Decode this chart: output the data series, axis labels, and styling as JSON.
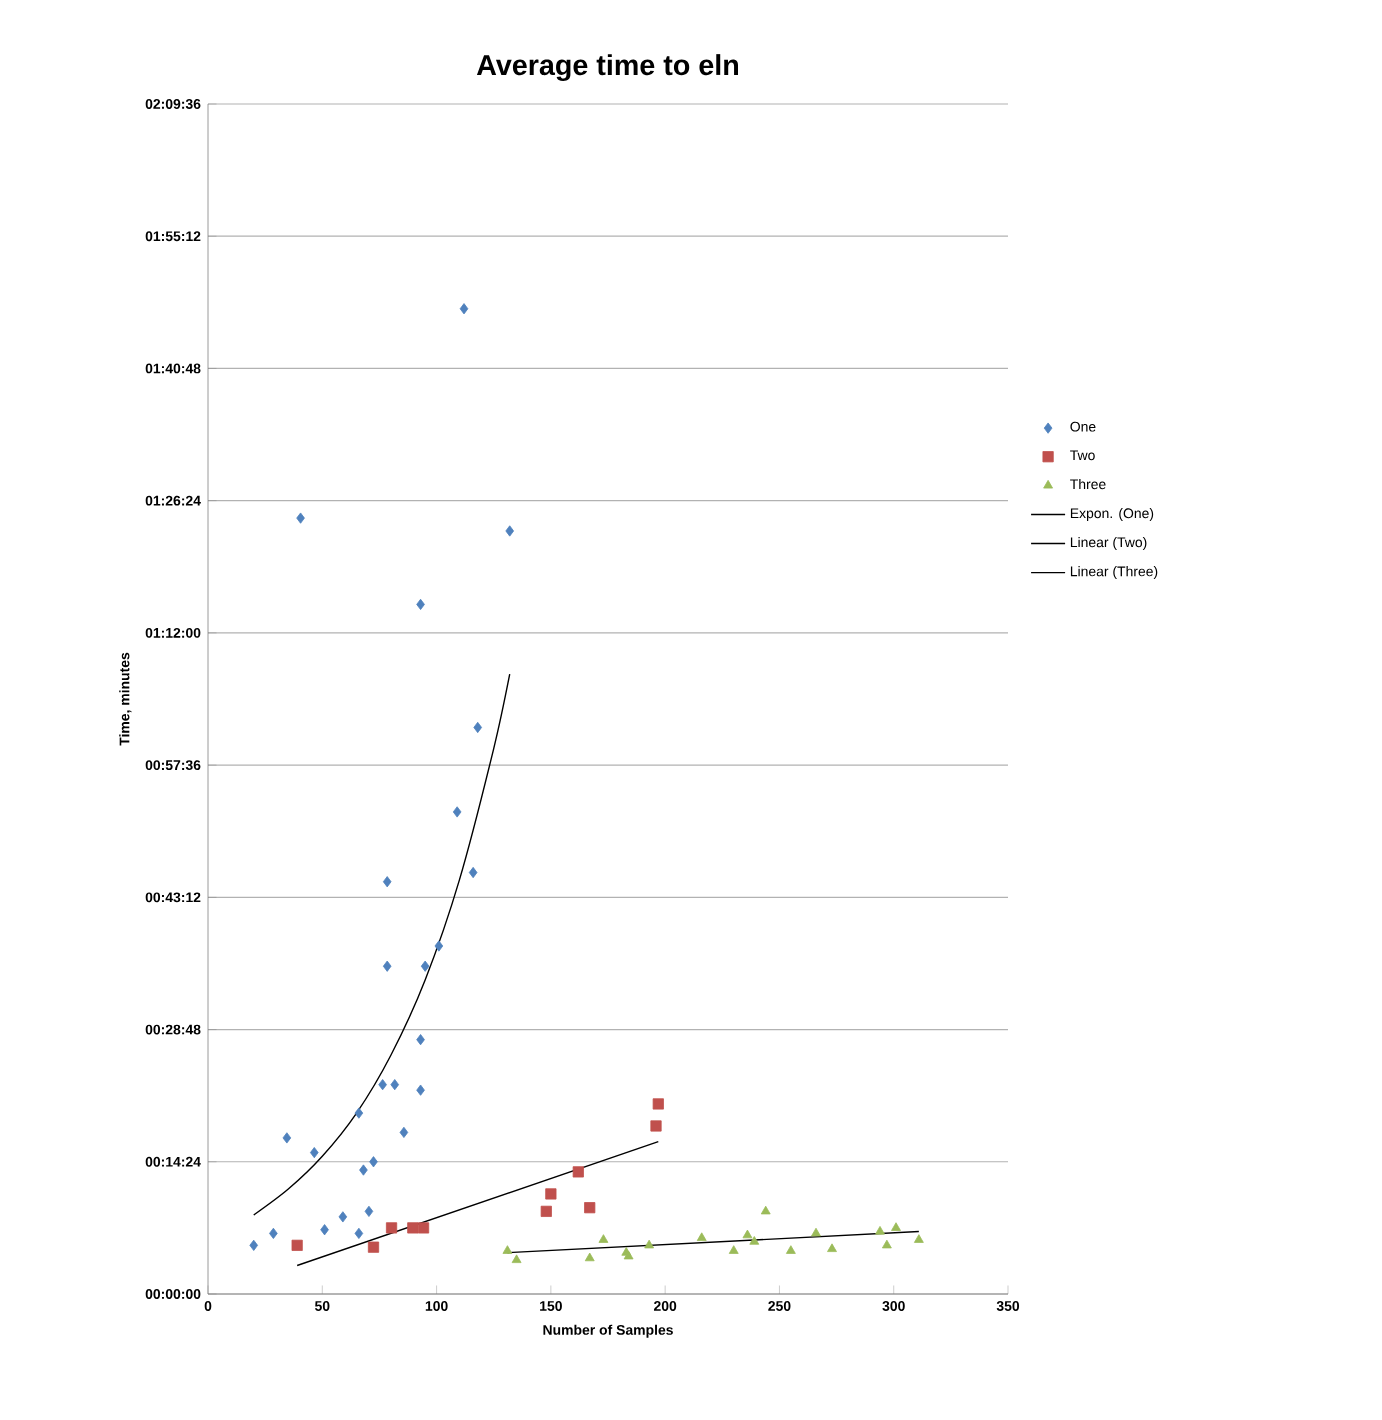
{
  "chart_data": {
    "type": "scatter",
    "title": "Average time to eln",
    "xlabel": "Number of Samples",
    "ylabel": "Time, minutes",
    "xlim": [
      0,
      350
    ],
    "xticks": [
      0,
      50,
      100,
      150,
      200,
      250,
      300,
      350
    ],
    "ylim": [
      0,
      129.6
    ],
    "yticks": [
      {
        "value": 0,
        "label": "00:00:00"
      },
      {
        "value": 14.4,
        "label": "00:14:24"
      },
      {
        "value": 28.8,
        "label": "00:28:48"
      },
      {
        "value": 43.2,
        "label": "00:43:12"
      },
      {
        "value": 57.6,
        "label": "00:57:36"
      },
      {
        "value": 72,
        "label": "01:12:00"
      },
      {
        "value": 86.4,
        "label": "01:26:24"
      },
      {
        "value": 100.8,
        "label": "01:40:48"
      },
      {
        "value": 115.2,
        "label": "01:55:12"
      },
      {
        "value": 129.6,
        "label": "02:09:36"
      }
    ],
    "grid": "y",
    "legend": "right",
    "series": [
      {
        "name": "One",
        "type": "scatter",
        "marker": "diamond",
        "color": "#4f81bd",
        "x": [
          20,
          28.6,
          34.5,
          46.5,
          51,
          59,
          66,
          66,
          68,
          70.4,
          72.4,
          76.4,
          81.7,
          78.4,
          78.4,
          85.7,
          93,
          93,
          95,
          101,
          116,
          109,
          118,
          93,
          40.5,
          132,
          112
        ],
        "values": [
          5.3,
          6.6,
          17.0,
          15.4,
          7.0,
          8.4,
          6.6,
          19.7,
          13.5,
          9.0,
          14.4,
          22.8,
          22.8,
          35.7,
          44.9,
          17.6,
          22.2,
          27.7,
          35.7,
          37.9,
          45.9,
          52.5,
          61.7,
          75.1,
          84.5,
          83.1,
          107.3
        ]
      },
      {
        "name": "Two",
        "type": "scatter",
        "marker": "square",
        "color": "#c0504d",
        "x": [
          39,
          72.4,
          80.3,
          89.6,
          94.3,
          148,
          150,
          162,
          167,
          196,
          197
        ],
        "values": [
          5.3,
          5.1,
          7.2,
          7.2,
          7.2,
          9.0,
          10.9,
          13.3,
          9.4,
          18.3,
          20.7
        ]
      },
      {
        "name": "Three",
        "type": "scatter",
        "marker": "triangle",
        "color": "#9bbb59",
        "x": [
          131,
          135,
          167,
          173,
          183,
          184,
          193,
          216,
          230,
          236,
          239,
          244,
          255,
          266,
          273,
          294,
          297,
          301,
          311
        ],
        "values": [
          4.7,
          3.7,
          3.9,
          5.9,
          4.5,
          4.1,
          5.3,
          6.1,
          4.7,
          6.4,
          5.7,
          9.0,
          4.7,
          6.6,
          4.9,
          6.8,
          5.3,
          7.2,
          5.9
        ]
      },
      {
        "name": "Expon. (One)",
        "type": "line",
        "marker": "none",
        "line_style": "solid",
        "color": "#000000",
        "x": [
          20,
          35,
          50,
          65,
          80,
          95,
          110,
          125,
          132
        ],
        "values": [
          8.6,
          11.4,
          15.0,
          19.7,
          26.0,
          34.2,
          45.1,
          59.4,
          67.5
        ]
      },
      {
        "name": "Linear (Two)",
        "type": "line",
        "marker": "none",
        "line_style": "solid",
        "color": "#000000",
        "x": [
          39,
          197
        ],
        "values": [
          3.1,
          16.6
        ]
      },
      {
        "name": "Linear (Three)",
        "type": "line",
        "marker": "none",
        "line_style": "solid",
        "color": "#000000",
        "x": [
          131,
          311
        ],
        "values": [
          4.5,
          6.8
        ]
      }
    ]
  }
}
